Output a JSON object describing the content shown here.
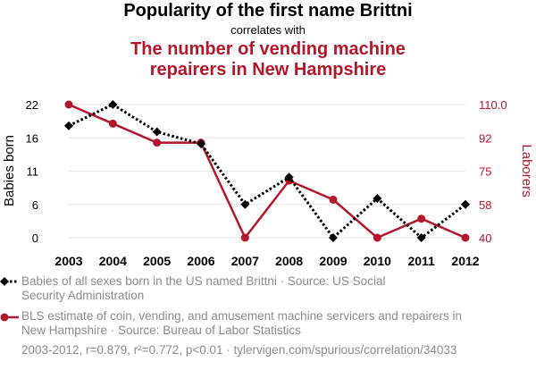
{
  "header": {
    "title": "Popularity of the first name Brittni",
    "subtitle": "correlates with",
    "title2_line1": "The number of vending machine",
    "title2_line2": "repairers in New Hampshire"
  },
  "chart_data": {
    "type": "line",
    "categories": [
      "2003",
      "2004",
      "2005",
      "2006",
      "2007",
      "2008",
      "2009",
      "2010",
      "2011",
      "2012"
    ],
    "ylabel_left": "Babies born",
    "ylabel_right": "Laborers",
    "left_ticks": [
      "22",
      "16",
      "11",
      "6",
      "0"
    ],
    "right_ticks": [
      "110.0",
      "92",
      "75",
      "58",
      "40"
    ],
    "left_range": [
      0,
      22
    ],
    "right_range": [
      40,
      110
    ],
    "series": [
      {
        "name": "Babies of all sexes born in the US named Brittni · Source: US Social Security Administration",
        "axis": "left",
        "color": "#000000",
        "style": "dotted",
        "marker": "diamond",
        "values": [
          18.5,
          22,
          17.5,
          15.5,
          5.5,
          10,
          0,
          6.5,
          0,
          5.5
        ]
      },
      {
        "name": "BLS estimate of coin, vending, and amusement machine servicers and repairers in New Hampshire · Source: Bureau of Labor Statistics",
        "axis": "right",
        "color": "#b3172a",
        "style": "solid",
        "marker": "circle",
        "values": [
          110,
          100,
          90,
          90,
          40,
          70,
          60,
          40,
          50,
          40
        ]
      }
    ],
    "grid": true
  },
  "legend": {
    "item1_line1": "Babies of all sexes born in the US named Brittni · Source: US Social",
    "item1_line2": "Security Administration",
    "item2_line1": "BLS estimate of coin, vending, and amusement machine servicers and repairers in",
    "item2_line2": "New Hampshire · Source: Bureau of Labor Statistics"
  },
  "footer": "2003-2012, r=0.879, r²=0.772, p<0.01 · tylervigen.com/spurious/correlation/34033"
}
